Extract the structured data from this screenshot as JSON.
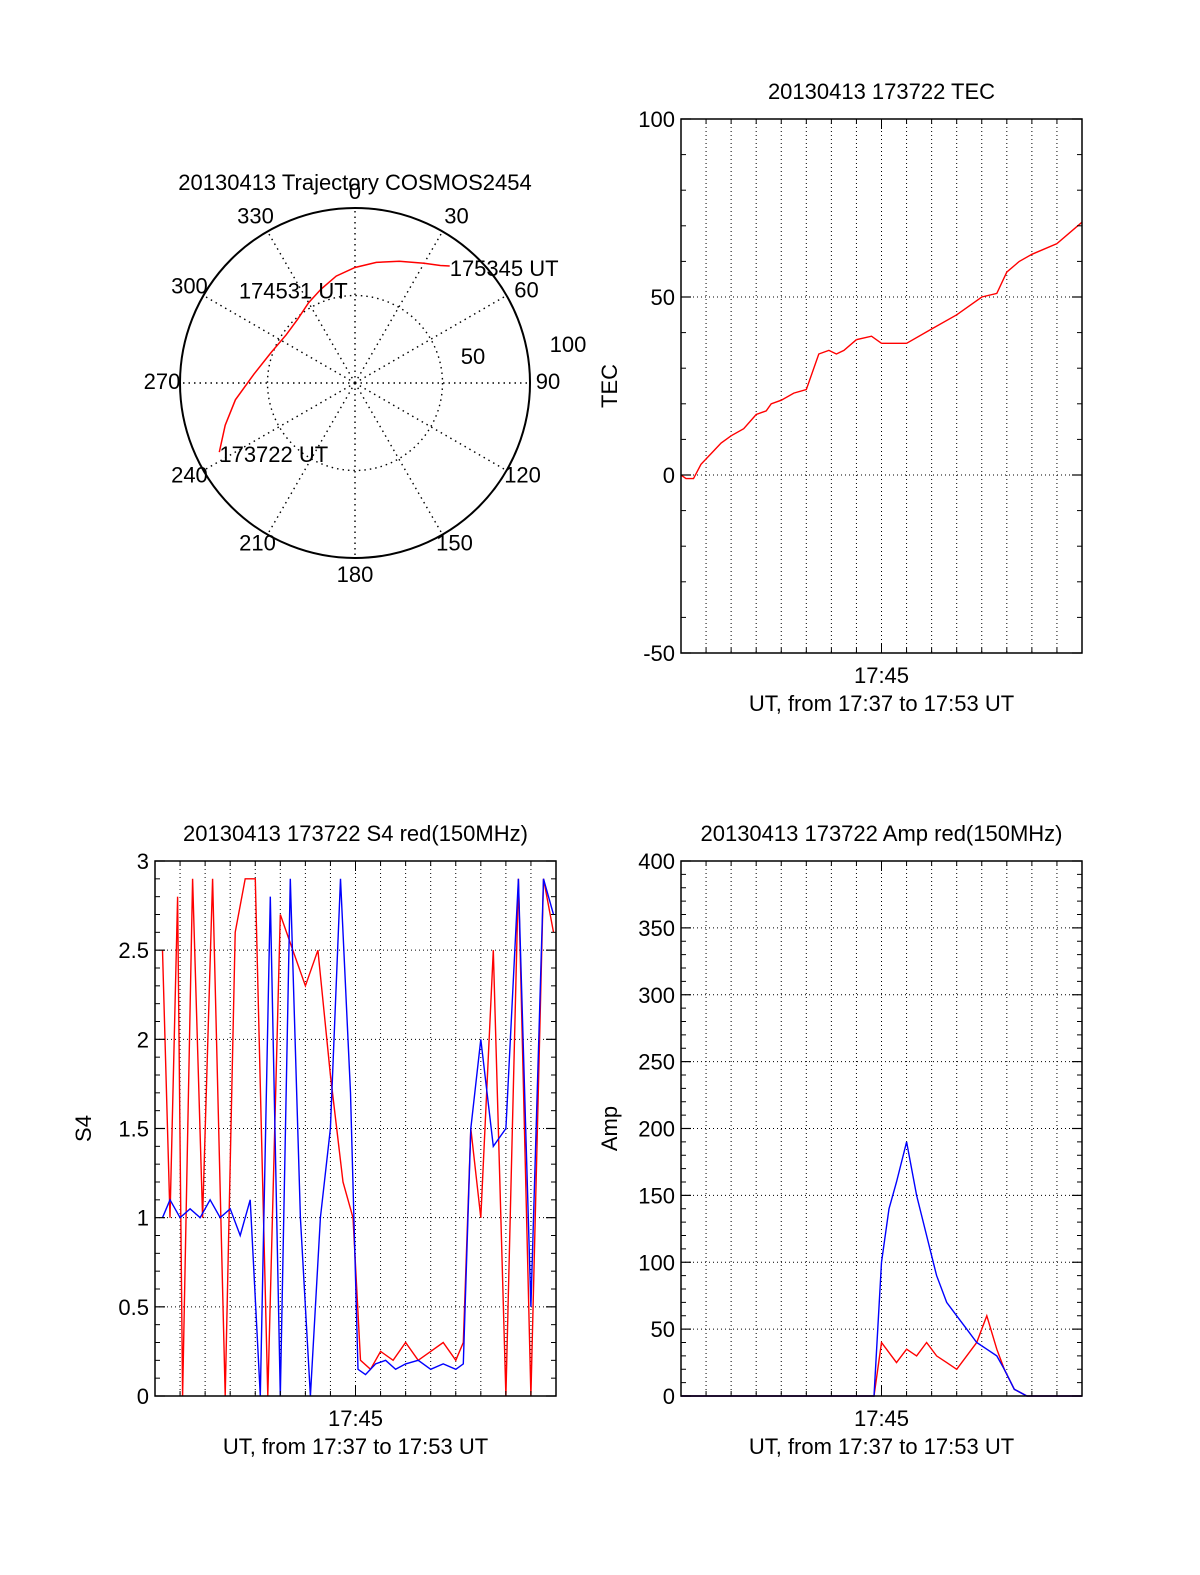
{
  "chart_data": [
    {
      "type": "polar",
      "title": "20130413 Trajectory COSMOS2454",
      "azimuth_labels": [
        "0",
        "30",
        "60",
        "90",
        "120",
        "150",
        "180",
        "210",
        "240",
        "270",
        "300",
        "330"
      ],
      "azimuth_values": [
        0,
        30,
        60,
        90,
        120,
        150,
        180,
        210,
        240,
        270,
        300,
        330
      ],
      "radius_labels": [
        "50",
        "100"
      ],
      "radius_values": [
        50,
        100
      ],
      "radius_range": [
        0,
        100
      ],
      "series_color": "#ff0000",
      "trajectory": [
        {
          "az": 243,
          "r": 87
        },
        {
          "az": 252,
          "r": 78
        },
        {
          "az": 262,
          "r": 69
        },
        {
          "az": 275,
          "r": 58
        },
        {
          "az": 290,
          "r": 51
        },
        {
          "az": 305,
          "r": 48
        },
        {
          "az": 318,
          "r": 49
        },
        {
          "az": 330,
          "r": 53
        },
        {
          "az": 340,
          "r": 57
        },
        {
          "az": 350,
          "r": 62
        },
        {
          "az": 0,
          "r": 66
        },
        {
          "az": 10,
          "r": 70
        },
        {
          "az": 20,
          "r": 74
        },
        {
          "az": 30,
          "r": 79
        },
        {
          "az": 36,
          "r": 83
        },
        {
          "az": 39,
          "r": 86
        }
      ],
      "annotations": [
        {
          "text": "173722 UT",
          "az": 243,
          "r": 87
        },
        {
          "text": "174531 UT",
          "az": 322,
          "r": 54
        },
        {
          "text": "175345 UT",
          "az": 39,
          "r": 86
        }
      ]
    },
    {
      "type": "line",
      "title": "20130413 173722 TEC",
      "ylabel": "TEC",
      "xlabel": "UT, from 17:37 to 17:53 UT",
      "xtick_label": "17:45",
      "ylim": [
        -50,
        100
      ],
      "yticks": [
        -50,
        0,
        50,
        100
      ],
      "grid": true,
      "series": [
        {
          "color": "#ff0000",
          "x": [
            0,
            0.2,
            0.5,
            0.8,
            1.2,
            1.6,
            2.0,
            2.5,
            3.0,
            3.4,
            3.6,
            4.0,
            4.5,
            5.0,
            5.5,
            5.9,
            6.2,
            6.5,
            7.0,
            7.6,
            8.0,
            9.0,
            10.0,
            11.0,
            12.0,
            12.6,
            13.0,
            13.5,
            14.0,
            15.0,
            16.0
          ],
          "y": [
            0,
            -1,
            -1,
            3,
            6,
            9,
            11,
            13,
            17,
            18,
            20,
            21,
            23,
            24,
            34,
            35,
            34,
            35,
            38,
            39,
            37,
            37,
            41,
            45,
            50,
            51,
            57,
            60,
            62,
            65,
            71
          ]
        }
      ]
    },
    {
      "type": "line",
      "title": "20130413 173722 S4 red(150MHz)",
      "ylabel": "S4",
      "xlabel": "UT, from 17:37 to 17:53 UT",
      "xtick_label": "17:45",
      "ylim": [
        0,
        3
      ],
      "yticks": [
        "0",
        "0.5",
        "1",
        "1.5",
        "2",
        "2.5",
        "3"
      ],
      "ytick_values": [
        0,
        0.5,
        1,
        1.5,
        2,
        2.5,
        3
      ],
      "grid": true,
      "series": [
        {
          "color": "#ff0000",
          "x": [
            0.3,
            0.6,
            0.9,
            1.1,
            1.5,
            1.9,
            2.3,
            2.8,
            3.2,
            3.6,
            4.0,
            4.5,
            5.0,
            5.5,
            6.0,
            6.5,
            7.0,
            7.5,
            7.9,
            8.2,
            8.6,
            9.0,
            9.5,
            10.0,
            10.5,
            11.0,
            11.5,
            12.0,
            12.3,
            12.6,
            13.0,
            13.5,
            14.0,
            14.5,
            15.0,
            15.5,
            15.9
          ],
          "y": [
            2.5,
            1.0,
            2.8,
            0.0,
            2.9,
            1.0,
            2.9,
            0.0,
            2.6,
            2.9,
            2.9,
            0.0,
            2.7,
            2.5,
            2.3,
            2.5,
            1.8,
            1.2,
            1.0,
            0.2,
            0.15,
            0.25,
            0.2,
            0.3,
            0.2,
            0.25,
            0.3,
            0.2,
            0.3,
            1.5,
            1.0,
            2.5,
            0.0,
            2.9,
            0.0,
            2.9,
            2.6
          ]
        },
        {
          "color": "#0000ff",
          "x": [
            0.3,
            0.6,
            1.0,
            1.4,
            1.8,
            2.2,
            2.6,
            3.0,
            3.4,
            3.8,
            4.2,
            4.6,
            5.0,
            5.4,
            5.8,
            6.2,
            6.6,
            7.0,
            7.4,
            7.8,
            8.1,
            8.4,
            8.8,
            9.2,
            9.6,
            10.0,
            10.5,
            11.0,
            11.5,
            12.0,
            12.3,
            12.6,
            13.0,
            13.5,
            14.0,
            14.5,
            15.0,
            15.5,
            15.9
          ],
          "y": [
            1.0,
            1.1,
            1.0,
            1.05,
            1.0,
            1.1,
            1.0,
            1.05,
            0.9,
            1.1,
            0.0,
            2.8,
            0.0,
            2.9,
            1.0,
            0.0,
            1.0,
            1.5,
            2.9,
            1.7,
            0.15,
            0.12,
            0.18,
            0.2,
            0.15,
            0.18,
            0.2,
            0.15,
            0.18,
            0.15,
            0.18,
            1.5,
            2.0,
            1.4,
            1.5,
            2.9,
            0.5,
            2.9,
            2.7
          ]
        }
      ]
    },
    {
      "type": "line",
      "title": "20130413 173722 Amp red(150MHz)",
      "ylabel": "Amp",
      "xlabel": "UT, from 17:37 to 17:53 UT",
      "xtick_label": "17:45",
      "ylim": [
        0,
        400
      ],
      "yticks": [
        0,
        50,
        100,
        150,
        200,
        250,
        300,
        350,
        400
      ],
      "grid": true,
      "series": [
        {
          "color": "#ff0000",
          "x": [
            0,
            4,
            7.7,
            8.0,
            8.2,
            8.6,
            9.0,
            9.4,
            9.8,
            10.2,
            10.6,
            11.0,
            11.4,
            11.8,
            12.2,
            12.6,
            12.9,
            13.3,
            13.8,
            16.0
          ],
          "y": [
            0,
            0,
            0,
            40,
            35,
            25,
            35,
            30,
            40,
            30,
            25,
            20,
            30,
            40,
            60,
            35,
            20,
            5,
            0,
            0
          ]
        },
        {
          "color": "#0000ff",
          "x": [
            0,
            4,
            7.7,
            8.0,
            8.3,
            8.6,
            9.0,
            9.4,
            9.8,
            10.2,
            10.6,
            11.0,
            11.4,
            11.8,
            12.2,
            12.6,
            12.9,
            13.3,
            13.8,
            16.0
          ],
          "y": [
            0,
            0,
            0,
            100,
            140,
            160,
            190,
            150,
            120,
            90,
            70,
            60,
            50,
            40,
            35,
            30,
            20,
            5,
            0,
            0
          ]
        }
      ]
    }
  ]
}
